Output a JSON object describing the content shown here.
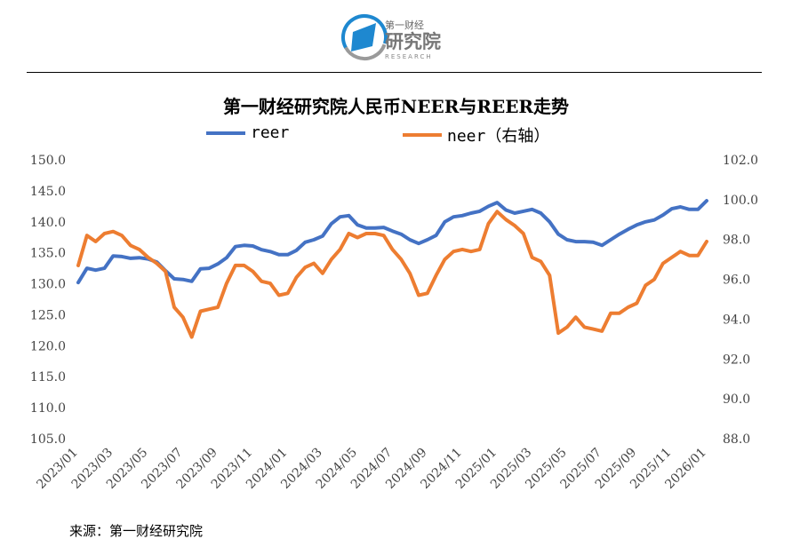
{
  "logo": {
    "top_text": "第一财经",
    "main_text": "研究院",
    "sub_text": "RESEARCH"
  },
  "chart_data": {
    "type": "line",
    "title": "第一财经研究院人民币NEER与REER走势",
    "legend_position": "top",
    "grid": false,
    "xlabel": "",
    "ylabel": "",
    "y2label": "",
    "x_ticks": [
      "2023/01",
      "2023/03",
      "2023/05",
      "2023/07",
      "2023/09",
      "2023/11",
      "2024/01",
      "2024/03",
      "2024/05",
      "2024/07",
      "2024/09",
      "2024/11",
      "2025/01",
      "2025/03",
      "2025/05",
      "2025/07",
      "2025/09",
      "2025/11",
      "2026/01"
    ],
    "ylim": [
      105,
      150
    ],
    "y_ticks": [
      "150.0",
      "145.0",
      "140.0",
      "135.0",
      "130.0",
      "125.0",
      "120.0",
      "115.0",
      "110.0",
      "105.0"
    ],
    "y2lim": [
      88,
      102
    ],
    "y2_ticks": [
      "102.0",
      "100.0",
      "98.0",
      "96.0",
      "94.0",
      "92.0",
      "90.0",
      "88.0"
    ],
    "x_months_since_2023_01": [
      0,
      0.5,
      1,
      1.5,
      2,
      2.5,
      3,
      3.5,
      4,
      4.5,
      5,
      5.5,
      6,
      6.5,
      7,
      7.5,
      8,
      8.5,
      9,
      9.5,
      10,
      10.5,
      11,
      11.5,
      12,
      12.5,
      13,
      13.5,
      14,
      14.5,
      15,
      15.5,
      16,
      16.5,
      17,
      17.5,
      18,
      18.5,
      19,
      19.5,
      20,
      20.5,
      21,
      21.5,
      22,
      22.5,
      23,
      23.5,
      24,
      24.5,
      25,
      25.5,
      26,
      26.5,
      27,
      27.5,
      28,
      28.5,
      29,
      29.5,
      30,
      30.5,
      31,
      31.5,
      32,
      32.5,
      33,
      33.5,
      34,
      34.5,
      35,
      35.5,
      36
    ],
    "series": [
      {
        "name": "reer",
        "axis": "left",
        "color": "#4472C4",
        "values": [
          130.2,
          132.5,
          132.2,
          132.5,
          134.5,
          134.4,
          134.1,
          134.2,
          134.0,
          133.5,
          132.1,
          130.8,
          130.7,
          130.4,
          132.4,
          132.5,
          133.2,
          134.2,
          136.0,
          136.2,
          136.1,
          135.5,
          135.2,
          134.7,
          134.7,
          135.4,
          136.7,
          137.1,
          137.7,
          139.7,
          140.8,
          141.0,
          139.5,
          139.0,
          139.0,
          139.1,
          138.5,
          138.0,
          137.1,
          136.5,
          137.1,
          137.8,
          140.0,
          140.8,
          141.0,
          141.4,
          141.7,
          142.5,
          143.1,
          141.9,
          141.4,
          141.7,
          142.0,
          141.4,
          140.0,
          138.0,
          137.1,
          136.8,
          136.8,
          136.7,
          136.2,
          137.1,
          138.0,
          138.8,
          139.5,
          140.0,
          140.3,
          141.1,
          142.1,
          142.4,
          142.0,
          142.0,
          143.4
        ]
      },
      {
        "name": "neer（右轴）",
        "axis": "right",
        "color": "#ED7D31",
        "values": [
          96.7,
          98.2,
          97.9,
          98.3,
          98.4,
          98.2,
          97.7,
          97.5,
          97.1,
          96.8,
          96.4,
          94.6,
          94.1,
          93.1,
          94.4,
          94.5,
          94.6,
          95.8,
          96.7,
          96.7,
          96.4,
          95.9,
          95.8,
          95.2,
          95.3,
          96.1,
          96.6,
          96.8,
          96.3,
          97.0,
          97.5,
          98.3,
          98.1,
          98.3,
          98.3,
          98.2,
          97.5,
          97.0,
          96.3,
          95.2,
          95.3,
          96.2,
          97.0,
          97.4,
          97.5,
          97.4,
          97.5,
          98.8,
          99.4,
          99.0,
          98.7,
          98.3,
          97.1,
          96.9,
          96.2,
          93.3,
          93.6,
          94.1,
          93.6,
          93.5,
          93.4,
          94.3,
          94.3,
          94.6,
          94.8,
          95.7,
          96.0,
          96.8,
          97.1,
          97.4,
          97.2,
          97.2,
          97.9
        ]
      }
    ]
  },
  "legend": {
    "reer": "reer",
    "neer": "neer（右轴）"
  },
  "source": "来源：第一财经研究院"
}
